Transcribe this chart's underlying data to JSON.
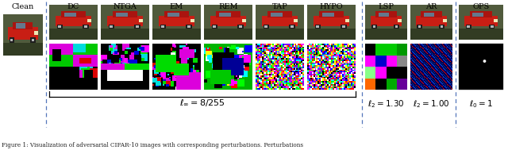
{
  "col_labels_group1": [
    "DC",
    "NTGA",
    "EM",
    "REM",
    "TAP",
    "HYPO"
  ],
  "col_labels_group2": [
    "LSP",
    "AR"
  ],
  "col_labels_group3": [
    "OPS"
  ],
  "row_label": "Clean",
  "annotation_group1": "$\\ell_\\infty = 8/255$",
  "annotation_group2_1": "$\\ell_2 = 1.30$",
  "annotation_group2_2": "$\\ell_2 = 1.00$",
  "annotation_group3": "$\\ell_0 = 1$",
  "caption": "Figure 1: Visualization of adversarial CIFAR-10 images with corresponding perturbations. Perturbations",
  "bg_color": "#ffffff",
  "border_color": "#5577bb",
  "text_color": "#000000",
  "fig_width": 6.4,
  "fig_height": 1.89
}
